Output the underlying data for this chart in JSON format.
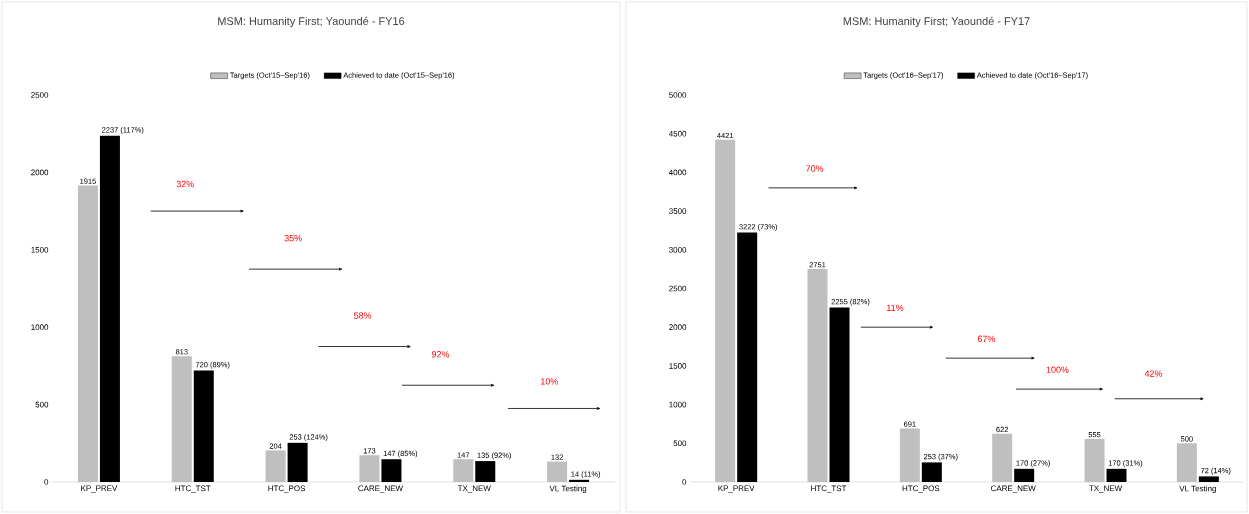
{
  "chart_data": [
    {
      "type": "bar",
      "title": "MSM: Humanity First; Yaoundé - FY16",
      "categories": [
        "KP_PREV",
        "HTC_TST",
        "HTC_POS",
        "CARE_NEW",
        "TX_NEW",
        "VL Testing"
      ],
      "series": [
        {
          "name": "Targets (Oct'15–Sep'16)",
          "color": "#bfbfbf",
          "values": [
            1915,
            813,
            204,
            173,
            147,
            132
          ],
          "value_labels": [
            "1915",
            "813",
            "204",
            "173",
            "147",
            "132"
          ]
        },
        {
          "name": "Achieved to date (Oct'15–Sep'16)",
          "color": "#000000",
          "values": [
            2237,
            720,
            253,
            147,
            135,
            14
          ],
          "value_labels": [
            "2237 (117%)",
            "720  (89%)",
            "253  (124%)",
            "147  (85%)",
            "135  (92%)",
            "14  (11%)"
          ]
        }
      ],
      "ylim": [
        0,
        2500
      ],
      "yticks": [
        0,
        500,
        1000,
        1500,
        2000,
        2500
      ],
      "legend": "top",
      "annotations": [
        "32%",
        "35%",
        "58%",
        "92%",
        "10%"
      ]
    },
    {
      "type": "bar",
      "title": "MSM: Humanity First; Yaoundé - FY17",
      "categories": [
        "KP_PREV",
        "HTC_TST",
        "HTC_POS",
        "CARE_NEW",
        "TX_NEW",
        "VL Testing"
      ],
      "series": [
        {
          "name": "Targets (Oct'16–Sep'17)",
          "color": "#bfbfbf",
          "values": [
            4421,
            2751,
            691,
            622,
            555,
            500
          ],
          "value_labels": [
            "4421",
            "2751",
            "691",
            "622",
            "555",
            "500"
          ]
        },
        {
          "name": "Achieved to date (Oct'16–Sep'17)",
          "color": "#000000",
          "values": [
            3222,
            2255,
            253,
            170,
            170,
            72
          ],
          "value_labels": [
            "3222 (73%)",
            "2255  (82%)",
            "253  (37%)",
            "170  (27%)",
            "170  (31%)",
            "72  (14%)"
          ]
        }
      ],
      "ylim": [
        0,
        5000
      ],
      "yticks": [
        0,
        500,
        1000,
        1500,
        2000,
        2500,
        3000,
        3500,
        4000,
        4500,
        5000
      ],
      "legend": "top",
      "annotations": [
        "70%",
        "11%",
        "67%",
        "100%",
        "42%"
      ]
    }
  ]
}
